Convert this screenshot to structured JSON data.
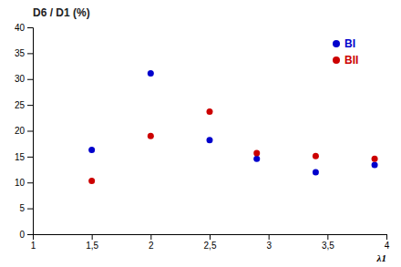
{
  "chart_data": {
    "type": "scatter",
    "title": "D6 / D1 (%)",
    "xlabel": "λ1",
    "x": [
      1.5,
      2.0,
      2.5,
      2.9,
      3.4,
      3.9
    ],
    "series": [
      {
        "name": "BI",
        "color": "#0000cc",
        "values": [
          16.3,
          31.1,
          18.2,
          14.6,
          12.0,
          13.4
        ]
      },
      {
        "name": "BII",
        "color": "#cc0000",
        "values": [
          10.3,
          19.0,
          23.7,
          15.7,
          15.1,
          14.6
        ]
      }
    ],
    "xlim": [
      1,
      4
    ],
    "ylim": [
      0,
      40
    ],
    "xticks": [
      1,
      {
        "value": 1.5,
        "label": "1,5"
      },
      2,
      {
        "value": 2.5,
        "label": "2,5"
      },
      3,
      {
        "value": 3.5,
        "label": "3,5"
      },
      4
    ],
    "yticks": [
      0,
      5,
      10,
      15,
      20,
      25,
      30,
      35,
      40
    ],
    "grid": false,
    "legend": "upper-right"
  }
}
